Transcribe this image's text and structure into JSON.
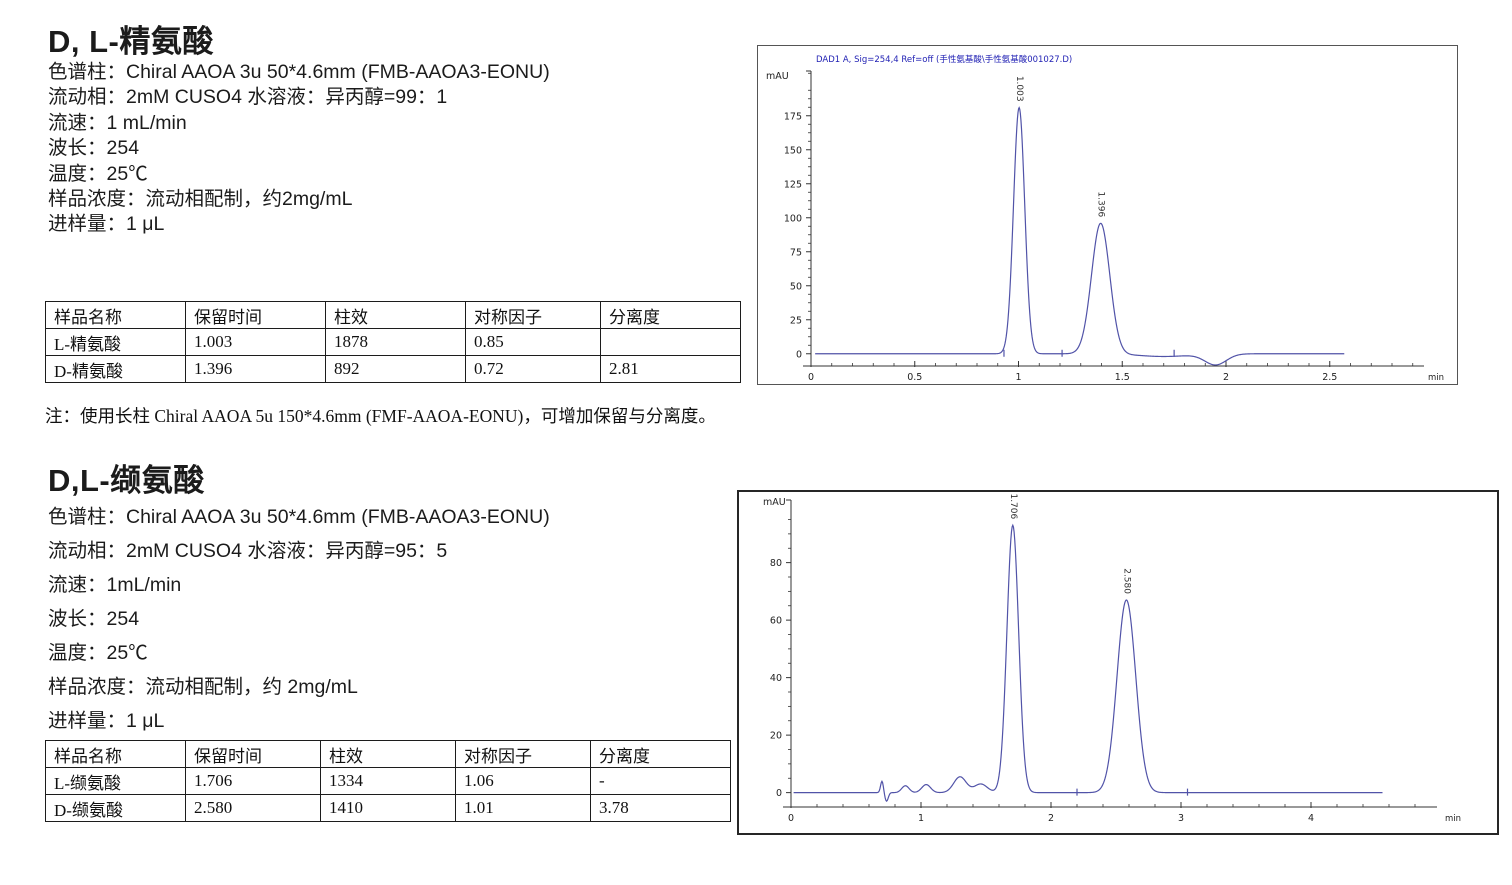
{
  "colors": {
    "trace": "#5153a8",
    "chart_title": "#2222b4",
    "axis": "#333333",
    "text": "#1b1b1b"
  },
  "section1": {
    "title": "D, L-精氨酸",
    "params": [
      "色谱柱：Chiral AAOA 3u 50*4.6mm (FMB-AAOA3-EONU)",
      "流动相：2mM CUSO4 水溶液：异丙醇=99：1",
      "流速：1 mL/min",
      "波长：254",
      "温度：25℃",
      "样品浓度：流动相配制，约2mg/mL",
      "进样量：1 μL"
    ],
    "table": {
      "headers": [
        "样品名称",
        "保留时间",
        "柱效",
        "对称因子",
        "分离度"
      ],
      "rows": [
        [
          "L-精氨酸",
          "1.003",
          "1878",
          "0.85",
          ""
        ],
        [
          "D-精氨酸",
          "1.396",
          "892",
          "0.72",
          "2.81"
        ]
      ]
    },
    "note": "注：使用长柱 Chiral AAOA 5u 150*4.6mm (FMF-AAOA-EONU)，可增加保留与分离度。"
  },
  "section2": {
    "title": "D,L-缬氨酸",
    "params": [
      "色谱柱：Chiral AAOA 3u 50*4.6mm (FMB-AAOA3-EONU)",
      "流动相：2mM CUSO4 水溶液：异丙醇=95：5",
      "流速：1mL/min",
      "波长：254",
      "温度：25℃",
      "样品浓度：流动相配制，约 2mg/mL",
      "进样量：1 μL"
    ],
    "table": {
      "headers": [
        "样品名称",
        "保留时间",
        "柱效",
        "对称因子",
        "分离度"
      ],
      "rows": [
        [
          "L-缬氨酸",
          "1.706",
          "1334",
          "1.06",
          "-"
        ],
        [
          "D-缬氨酸",
          "2.580",
          "1410",
          "1.01",
          "3.78"
        ]
      ]
    }
  },
  "chart_data": [
    {
      "type": "line",
      "title": "DAD1 A, Sig=254,4 Ref=off (手性氨基酸\\手性氨基酸001027.D)",
      "xlabel": "min",
      "ylabel": "mAU",
      "xlim": [
        0,
        2.92
      ],
      "ylim": [
        -9,
        208
      ],
      "x_ticks": [
        0,
        0.5,
        1,
        1.5,
        2,
        2.5
      ],
      "x_minor_step": 0.1,
      "y_ticks": [
        0,
        25,
        50,
        75,
        100,
        125,
        150,
        175
      ],
      "y_minor_step": 6.25,
      "grid": false,
      "legend": "none",
      "trace_range": [
        0.02,
        2.57
      ],
      "peaks": [
        {
          "rt": 1.003,
          "height_mau": 181,
          "sigma": 0.027,
          "label": "1.003"
        },
        {
          "rt": 1.396,
          "height_mau": 96,
          "sigma": 0.044,
          "label": "1.396"
        }
      ],
      "features": [
        {
          "rt": 1.7,
          "height_mau": -2,
          "sigma": 0.12
        },
        {
          "rt": 1.95,
          "height_mau": -8,
          "sigma": 0.052
        }
      ],
      "trace_ticks": [
        0.93,
        1.21,
        1.75
      ]
    },
    {
      "type": "line",
      "title": "",
      "xlabel": "min",
      "ylabel": "mAU",
      "xlim": [
        0,
        4.95
      ],
      "ylim": [
        -5,
        102
      ],
      "x_ticks": [
        0,
        1,
        2,
        3,
        4
      ],
      "x_minor_step": 0.2,
      "y_ticks": [
        0,
        20,
        40,
        60,
        80
      ],
      "y_minor_step": 5,
      "grid": false,
      "legend": "none",
      "trace_range": [
        0.02,
        4.55
      ],
      "peaks": [
        {
          "rt": 1.706,
          "height_mau": 93,
          "sigma": 0.045,
          "label": "1.706"
        },
        {
          "rt": 2.58,
          "height_mau": 67,
          "sigma": 0.072,
          "label": "2.580"
        }
      ],
      "features": [
        {
          "rt": 0.7,
          "height_mau": 4,
          "sigma": 0.011
        },
        {
          "rt": 0.735,
          "height_mau": -3,
          "sigma": 0.013
        },
        {
          "rt": 0.88,
          "height_mau": 2.4,
          "sigma": 0.028
        },
        {
          "rt": 1.04,
          "height_mau": 2.8,
          "sigma": 0.034
        },
        {
          "rt": 1.3,
          "height_mau": 5.5,
          "sigma": 0.048
        },
        {
          "rt": 1.46,
          "height_mau": 3,
          "sigma": 0.05
        }
      ],
      "trace_ticks": [
        2.2,
        3.05
      ]
    }
  ]
}
